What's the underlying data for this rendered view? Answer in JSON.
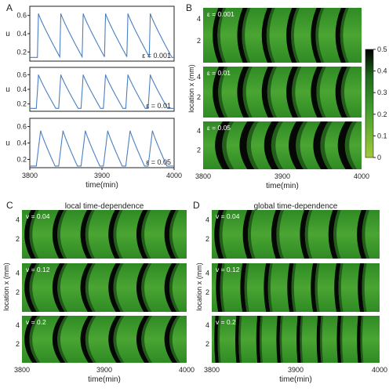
{
  "panels": {
    "A": {
      "letter": "A"
    },
    "B": {
      "letter": "B"
    },
    "C": {
      "letter": "C",
      "title": "local time-dependence"
    },
    "D": {
      "letter": "D",
      "title": "global time-dependence"
    }
  },
  "colorbar": {
    "ticks": [
      "0.5",
      "0.4",
      "0.3",
      "0.2",
      "0.1",
      "0"
    ],
    "colors": {
      "low": "#a3c93a",
      "mid": "#3f9b2c",
      "high": "#000000"
    }
  },
  "chart_data": [
    {
      "panel": "A",
      "type": "line",
      "xlabel": "time(min)",
      "ylabel": "u",
      "xlim": [
        3800,
        4000
      ],
      "xticks": [
        "3800",
        "3900",
        "4000"
      ],
      "ylim": [
        0.1,
        0.7
      ],
      "yticks": [
        "0.6",
        "0.4",
        "0.2"
      ],
      "line_color": "#4a7fc1",
      "subplots": [
        {
          "label": "ε = 0.001",
          "peak_times": [
            3812,
            3843,
            3874,
            3905,
            3936,
            3967
          ],
          "peak": 0.62,
          "base": 0.14,
          "rise": 1.5,
          "decay": 30
        },
        {
          "label": "ε = 0.01",
          "peak_times": [
            3812,
            3843,
            3874,
            3905,
            3936,
            3967
          ],
          "peak": 0.6,
          "base": 0.14,
          "rise": 3,
          "decay": 24
        },
        {
          "label": "ε = 0.05",
          "peak_times": [
            3815,
            3846,
            3877,
            3908,
            3939,
            3970
          ],
          "peak": 0.55,
          "base": 0.12,
          "rise": 6,
          "decay": 20
        }
      ]
    },
    {
      "panel": "B",
      "type": "heatmap",
      "xlabel": "time(min)",
      "ylabel": "location x (mm)",
      "xlim": [
        3800,
        4000
      ],
      "xticks": [
        "3800",
        "3900",
        "4000"
      ],
      "yticks": [
        "4",
        "2"
      ],
      "ylim": [
        0,
        5
      ],
      "colorbar_range": [
        0,
        0.5
      ],
      "subplots": [
        {
          "label": "ε = 0.001",
          "front_times": [
            3812,
            3843,
            3874,
            3905,
            3936,
            3967
          ],
          "curvature": 8,
          "band_width": 6
        },
        {
          "label": "ε = 0.01",
          "front_times": [
            3812,
            3843,
            3874,
            3905,
            3936,
            3967
          ],
          "curvature": 9,
          "band_width": 7
        },
        {
          "label": "ε = 0.05",
          "front_times": [
            3815,
            3846,
            3877,
            3908,
            3939,
            3970
          ],
          "curvature": 11,
          "band_width": 9
        }
      ]
    },
    {
      "panel": "C",
      "type": "heatmap",
      "title": "local time-dependence",
      "xlabel": "time(min)",
      "ylabel": "location x (mm)",
      "xlim": [
        3800,
        4000
      ],
      "xticks": [
        "3800",
        "3900",
        "4000"
      ],
      "yticks": [
        "4",
        "2"
      ],
      "ylim": [
        0,
        5
      ],
      "subplots": [
        {
          "label": "v = 0.04",
          "front_times": [
            3803,
            3837,
            3871,
            3905,
            3939,
            3973
          ],
          "curvature": 9,
          "band_width": 6
        },
        {
          "label": "v = 0.12",
          "front_times": [
            3803,
            3837,
            3871,
            3905,
            3939,
            3973
          ],
          "curvature": 10,
          "band_width": 6
        },
        {
          "label": "v = 0.2",
          "front_times": [
            3803,
            3837,
            3871,
            3905,
            3939,
            3973
          ],
          "curvature": 11,
          "band_width": 6
        }
      ]
    },
    {
      "panel": "D",
      "type": "heatmap",
      "title": "global time-dependence",
      "xlabel": "time(min)",
      "ylabel": "location x (mm)",
      "xlim": [
        3800,
        4000
      ],
      "xticks": [
        "3800",
        "3900",
        "4000"
      ],
      "yticks": [
        "4",
        "2"
      ],
      "ylim": [
        0,
        5
      ],
      "subplots": [
        {
          "label": "v = 0.04",
          "front_times": [
            3803,
            3837,
            3871,
            3905,
            3939,
            3973
          ],
          "curvature": 6,
          "band_width": 6
        },
        {
          "label": "v = 0.12",
          "front_times": [
            3805,
            3834,
            3862,
            3890,
            3918,
            3946,
            3974
          ],
          "curvature": 3,
          "band_width": 5
        },
        {
          "label": "v = 0.2",
          "front_times": [
            3803,
            3828,
            3853,
            3877,
            3901,
            3925,
            3949,
            3973
          ],
          "curvature": 1.5,
          "band_width": 4
        }
      ]
    }
  ]
}
